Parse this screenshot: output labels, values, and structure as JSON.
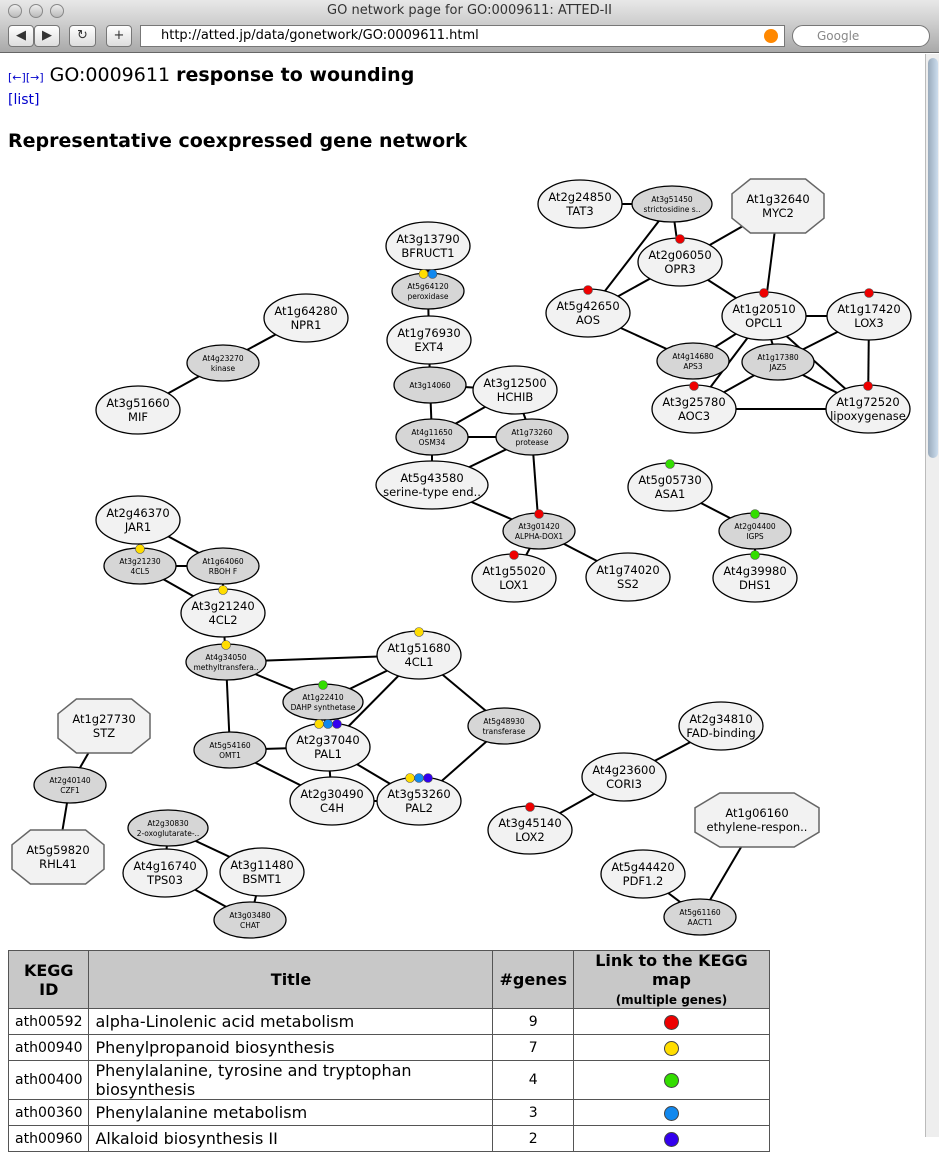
{
  "window": {
    "title": "GO network page for GO:0009611: ATTED-II",
    "url": "http://atted.jp/data/gonetwork/GO:0009611.html",
    "search_placeholder": "Google"
  },
  "page": {
    "prev": "[←]",
    "next": "[→]",
    "go_id": "GO:0009611",
    "go_name": "response to wounding",
    "list_link": "[list]",
    "section_title": "Representative coexpressed gene network"
  },
  "colors": {
    "red": "#ee0000",
    "yellow": "#ffdd00",
    "green": "#33dd00",
    "blue": "#1188ee",
    "indigo": "#3300ee"
  },
  "network": {
    "nodes": [
      {
        "id": "At2g24850",
        "label": "TAT3",
        "type": "major"
      },
      {
        "id": "At3g51450",
        "label": "strictosidine s..",
        "type": "minor"
      },
      {
        "id": "At1g32640",
        "label": "MYC2",
        "type": "octagon"
      },
      {
        "id": "At3g13790",
        "label": "BFRUCT1",
        "type": "major"
      },
      {
        "id": "At5g64120",
        "label": "peroxidase",
        "type": "minor",
        "dots": [
          "yellow",
          "blue"
        ]
      },
      {
        "id": "At2g06050",
        "label": "OPR3",
        "type": "major",
        "dots": [
          "red"
        ]
      },
      {
        "id": "At5g42650",
        "label": "AOS",
        "type": "major",
        "dots": [
          "red"
        ]
      },
      {
        "id": "At1g20510",
        "label": "OPCL1",
        "type": "major",
        "dots": [
          "red"
        ]
      },
      {
        "id": "At1g17420",
        "label": "LOX3",
        "type": "major",
        "dots": [
          "red"
        ]
      },
      {
        "id": "At1g64280",
        "label": "NPR1",
        "type": "major"
      },
      {
        "id": "At1g76930",
        "label": "EXT4",
        "type": "major"
      },
      {
        "id": "At4g23270",
        "label": "kinase",
        "type": "minor"
      },
      {
        "id": "At4g14680",
        "label": "APS3",
        "type": "minor"
      },
      {
        "id": "At1g17380",
        "label": "JAZ5",
        "type": "minor"
      },
      {
        "id": "At3g14060",
        "label": "",
        "type": "minor"
      },
      {
        "id": "At3g12500",
        "label": "HCHIB",
        "type": "major"
      },
      {
        "id": "At3g51660",
        "label": "MIF",
        "type": "major"
      },
      {
        "id": "At3g25780",
        "label": "AOC3",
        "type": "major",
        "dots": [
          "red"
        ]
      },
      {
        "id": "At1g72520",
        "label": "lipoxygenase",
        "type": "major",
        "dots": [
          "red"
        ]
      },
      {
        "id": "At4g11650",
        "label": "OSM34",
        "type": "minor"
      },
      {
        "id": "At1g73260",
        "label": "protease",
        "type": "minor"
      },
      {
        "id": "At5g43580",
        "label": "serine-type end..",
        "type": "major"
      },
      {
        "id": "At5g05730",
        "label": "ASA1",
        "type": "major",
        "dots": [
          "green"
        ]
      },
      {
        "id": "At2g46370",
        "label": "JAR1",
        "type": "major"
      },
      {
        "id": "At3g01420",
        "label": "ALPHA-DOX1",
        "type": "minor",
        "dots": [
          "red"
        ]
      },
      {
        "id": "At2g04400",
        "label": "IGPS",
        "type": "minor",
        "dots": [
          "green"
        ]
      },
      {
        "id": "At3g21230",
        "label": "4CL5",
        "type": "minor",
        "dots": [
          "yellow"
        ]
      },
      {
        "id": "At1g64060",
        "label": "RBOH F",
        "type": "minor"
      },
      {
        "id": "At1g55020",
        "label": "LOX1",
        "type": "major",
        "dots": [
          "red"
        ]
      },
      {
        "id": "At1g74020",
        "label": "SS2",
        "type": "major"
      },
      {
        "id": "At4g39980",
        "label": "DHS1",
        "type": "major",
        "dots": [
          "green"
        ]
      },
      {
        "id": "At3g21240",
        "label": "4CL2",
        "type": "major",
        "dots": [
          "yellow"
        ]
      },
      {
        "id": "At4g34050",
        "label": "methyltransfera..",
        "type": "minor",
        "dots": [
          "yellow"
        ]
      },
      {
        "id": "At1g51680",
        "label": "4CL1",
        "type": "major",
        "dots": [
          "yellow"
        ]
      },
      {
        "id": "At1g22410",
        "label": "DAHP synthetase",
        "type": "minor",
        "dots": [
          "green"
        ]
      },
      {
        "id": "At5g48930",
        "label": "transferase",
        "type": "minor"
      },
      {
        "id": "At1g27730",
        "label": "STZ",
        "type": "octagon"
      },
      {
        "id": "At2g34810",
        "label": "FAD-binding",
        "type": "major"
      },
      {
        "id": "At5g54160",
        "label": "OMT1",
        "type": "minor"
      },
      {
        "id": "At2g37040",
        "label": "PAL1",
        "type": "major",
        "dots": [
          "yellow",
          "blue",
          "indigo"
        ]
      },
      {
        "id": "At2g40140",
        "label": "CZF1",
        "type": "minor"
      },
      {
        "id": "At4g23600",
        "label": "CORI3",
        "type": "major"
      },
      {
        "id": "At2g30490",
        "label": "C4H",
        "type": "major"
      },
      {
        "id": "At3g53260",
        "label": "PAL2",
        "type": "major",
        "dots": [
          "yellow",
          "blue",
          "indigo"
        ]
      },
      {
        "id": "At1g06160",
        "label": "ethylene-respon..",
        "type": "octagon"
      },
      {
        "id": "At3g45140",
        "label": "LOX2",
        "type": "major",
        "dots": [
          "red"
        ]
      },
      {
        "id": "At2g30830",
        "label": "2-oxoglutarate-..",
        "type": "minor"
      },
      {
        "id": "At5g59820",
        "label": "RHL41",
        "type": "octagon"
      },
      {
        "id": "At4g16740",
        "label": "TPS03",
        "type": "major"
      },
      {
        "id": "At3g11480",
        "label": "BSMT1",
        "type": "major"
      },
      {
        "id": "At5g44420",
        "label": "PDF1.2",
        "type": "major"
      },
      {
        "id": "At3g03480",
        "label": "CHAT",
        "type": "minor"
      },
      {
        "id": "At5g61160",
        "label": "AACT1",
        "type": "minor"
      }
    ],
    "edges": [
      [
        "At2g24850",
        "At3g51450"
      ],
      [
        "At3g51450",
        "At2g06050"
      ],
      [
        "At3g51450",
        "At5g42650"
      ],
      [
        "At1g32640",
        "At2g06050"
      ],
      [
        "At1g32640",
        "At1g20510"
      ],
      [
        "At2g06050",
        "At5g42650"
      ],
      [
        "At2g06050",
        "At1g20510"
      ],
      [
        "At5g42650",
        "At4g14680"
      ],
      [
        "At4g14680",
        "At1g20510"
      ],
      [
        "At1g20510",
        "At1g17420"
      ],
      [
        "At1g20510",
        "At3g25780"
      ],
      [
        "At1g20510",
        "At1g17380"
      ],
      [
        "At1g20510",
        "At1g72520"
      ],
      [
        "At1g17420",
        "At1g17380"
      ],
      [
        "At1g17420",
        "At1g72520"
      ],
      [
        "At1g17380",
        "At3g25780"
      ],
      [
        "At1g17380",
        "At1g72520"
      ],
      [
        "At3g25780",
        "At1g72520"
      ],
      [
        "At3g13790",
        "At5g64120"
      ],
      [
        "At5g64120",
        "At1g76930"
      ],
      [
        "At1g76930",
        "At3g14060"
      ],
      [
        "At3g14060",
        "At3g12500"
      ],
      [
        "At3g14060",
        "At4g11650"
      ],
      [
        "At3g12500",
        "At4g11650"
      ],
      [
        "At3g12500",
        "At1g73260"
      ],
      [
        "At4g11650",
        "At1g73260"
      ],
      [
        "At4g11650",
        "At5g43580"
      ],
      [
        "At1g73260",
        "At5g43580"
      ],
      [
        "At1g73260",
        "At3g01420"
      ],
      [
        "At5g43580",
        "At3g01420"
      ],
      [
        "At3g01420",
        "At1g55020"
      ],
      [
        "At3g01420",
        "At1g74020"
      ],
      [
        "At1g64280",
        "At4g23270"
      ],
      [
        "At4g23270",
        "At3g51660"
      ],
      [
        "At5g05730",
        "At2g04400"
      ],
      [
        "At2g04400",
        "At4g39980"
      ],
      [
        "At2g46370",
        "At3g21230"
      ],
      [
        "At2g46370",
        "At1g64060"
      ],
      [
        "At3g21230",
        "At1g64060"
      ],
      [
        "At3g21230",
        "At3g21240"
      ],
      [
        "At1g64060",
        "At3g21240"
      ],
      [
        "At3g21240",
        "At4g34050"
      ],
      [
        "At4g34050",
        "At1g51680"
      ],
      [
        "At4g34050",
        "At1g22410"
      ],
      [
        "At4g34050",
        "At5g54160"
      ],
      [
        "At1g22410",
        "At1g51680"
      ],
      [
        "At1g22410",
        "At2g37040"
      ],
      [
        "At1g51680",
        "At2g37040"
      ],
      [
        "At1g51680",
        "At5g48930"
      ],
      [
        "At5g48930",
        "At3g53260"
      ],
      [
        "At5g54160",
        "At2g37040"
      ],
      [
        "At5g54160",
        "At2g30490"
      ],
      [
        "At2g37040",
        "At2g30490"
      ],
      [
        "At2g37040",
        "At3g53260"
      ],
      [
        "At2g30490",
        "At3g53260"
      ],
      [
        "At1g27730",
        "At2g40140"
      ],
      [
        "At2g40140",
        "At5g59820"
      ],
      [
        "At2g30830",
        "At4g16740"
      ],
      [
        "At2g30830",
        "At3g11480"
      ],
      [
        "At4g16740",
        "At3g03480"
      ],
      [
        "At3g11480",
        "At3g03480"
      ],
      [
        "At2g34810",
        "At4g23600"
      ],
      [
        "At4g23600",
        "At3g45140"
      ],
      [
        "At1g06160",
        "At5g61160"
      ],
      [
        "At5g44420",
        "At5g61160"
      ]
    ]
  },
  "kegg_table": {
    "headers": {
      "id": "KEGG ID",
      "title": "Title",
      "genes": "#genes",
      "link": "Link to the KEGG map",
      "link_sub": "(multiple genes)"
    },
    "rows": [
      {
        "id": "ath00592",
        "title": "alpha-Linolenic acid metabolism",
        "genes": "9",
        "color": "red"
      },
      {
        "id": "ath00940",
        "title": "Phenylpropanoid biosynthesis",
        "genes": "7",
        "color": "yellow"
      },
      {
        "id": "ath00400",
        "title": "Phenylalanine, tyrosine and tryptophan biosynthesis",
        "genes": "4",
        "color": "green"
      },
      {
        "id": "ath00360",
        "title": "Phenylalanine metabolism",
        "genes": "3",
        "color": "blue"
      },
      {
        "id": "ath00960",
        "title": "Alkaloid biosynthesis II",
        "genes": "2",
        "color": "indigo"
      }
    ]
  }
}
